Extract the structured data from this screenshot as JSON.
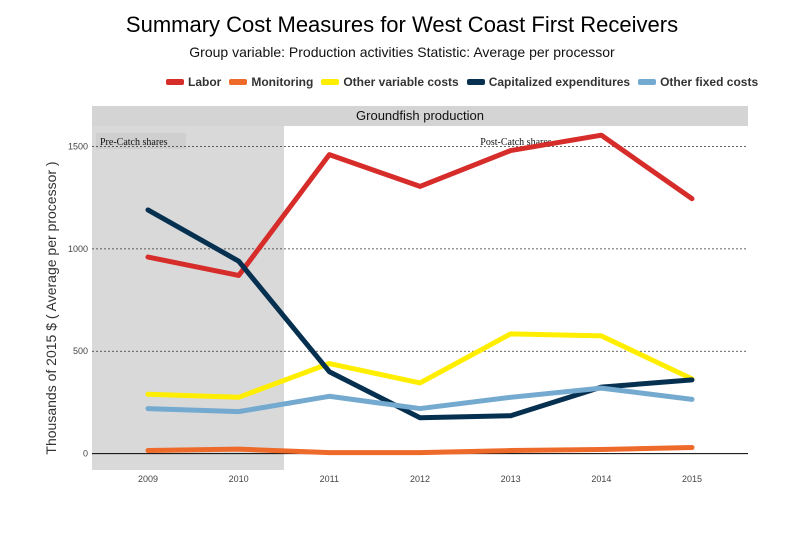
{
  "chart_data": {
    "type": "line",
    "title": "Summary Cost Measures for West Coast First Receivers",
    "subtitle": "Group variable: Production activities   Statistic: Average per processor",
    "ylabel": "Thousands of 2015 $ ( Average per processor )",
    "xlabel": "",
    "panel": "Groundfish production",
    "periods": [
      {
        "label": "Pre-Catch shares",
        "from": 2009,
        "to": 2010
      },
      {
        "label": "Post-Catch shares",
        "from": 2011,
        "to": 2015
      }
    ],
    "x": [
      2009,
      2010,
      2011,
      2012,
      2013,
      2014,
      2015
    ],
    "x_tick_labels": [
      "2009",
      "2010",
      "2011",
      "2012",
      "2013",
      "2014",
      "2015"
    ],
    "ylim": [
      -80,
      1600
    ],
    "y_ticks": [
      0,
      500,
      1000,
      1500
    ],
    "y_tick_labels": [
      "0",
      "500",
      "1000",
      "1500"
    ],
    "series": [
      {
        "name": "Labor",
        "color": "#d62d2a",
        "values": [
          960,
          870,
          1460,
          1305,
          1480,
          1555,
          1245
        ]
      },
      {
        "name": "Monitoring",
        "color": "#ee6a2b",
        "values": [
          15,
          22,
          5,
          5,
          15,
          20,
          30
        ]
      },
      {
        "name": "Other variable costs",
        "color": "#ffee00",
        "values": [
          290,
          275,
          440,
          345,
          585,
          575,
          365
        ]
      },
      {
        "name": "Capitalized expenditures",
        "color": "#063050",
        "values": [
          1190,
          940,
          400,
          175,
          185,
          325,
          360
        ]
      },
      {
        "name": "Other fixed costs",
        "color": "#74a9d0",
        "values": [
          220,
          205,
          280,
          220,
          275,
          320,
          265
        ]
      }
    ]
  }
}
